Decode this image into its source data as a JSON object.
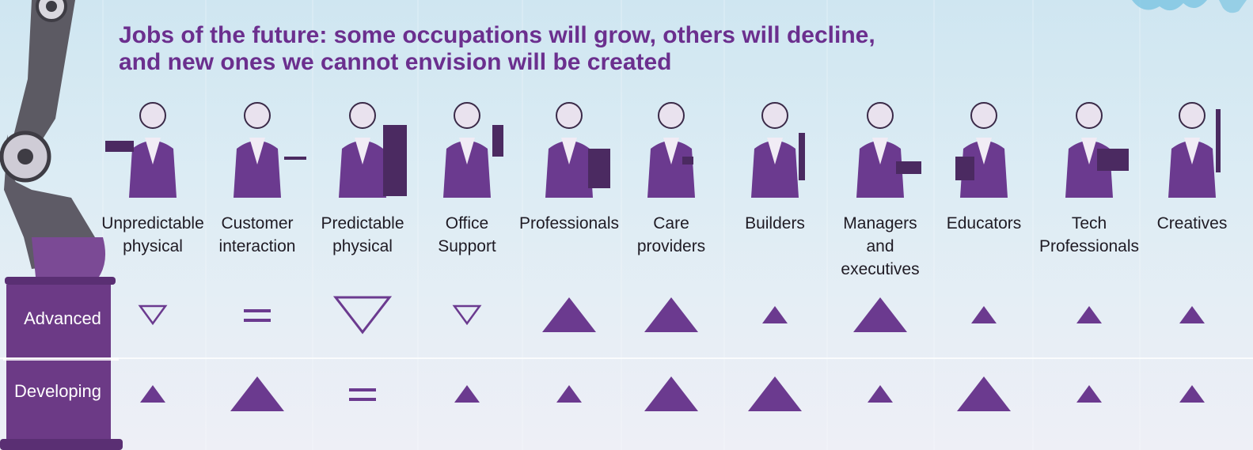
{
  "title": {
    "line1": "Jobs of the future: some occupations will grow, others will decline,",
    "line2": "and new ones we cannot envision will be created"
  },
  "rows": {
    "advanced": "Advanced",
    "developing": "Developing"
  },
  "colors": {
    "accent": "#6b3a8f",
    "title": "#6b2f8e",
    "label": "#1f1b24"
  },
  "columns": [
    {
      "line1": "Unpredictable",
      "line2": "physical",
      "line3": "",
      "icon": "worker-chainsaw-icon",
      "advanced": {
        "dir": "down",
        "size": "small"
      },
      "developing": {
        "dir": "up",
        "size": "small"
      }
    },
    {
      "line1": "Customer",
      "line2": "interaction",
      "line3": "",
      "icon": "waiter-icon",
      "advanced": {
        "dir": "equal",
        "size": "small"
      },
      "developing": {
        "dir": "up",
        "size": "large"
      }
    },
    {
      "line1": "Predictable",
      "line2": "physical",
      "line3": "",
      "icon": "machinist-icon",
      "advanced": {
        "dir": "down",
        "size": "large"
      },
      "developing": {
        "dir": "equal",
        "size": "small"
      }
    },
    {
      "line1": "Office",
      "line2": "Support",
      "line3": "",
      "icon": "office-worker-icon",
      "advanced": {
        "dir": "down",
        "size": "small"
      },
      "developing": {
        "dir": "up",
        "size": "small"
      }
    },
    {
      "line1": "Professionals",
      "line2": "",
      "line3": "",
      "icon": "scientist-microscope-icon",
      "advanced": {
        "dir": "up",
        "size": "large"
      },
      "developing": {
        "dir": "up",
        "size": "small"
      }
    },
    {
      "line1": "Care",
      "line2": "providers",
      "line3": "",
      "icon": "nurse-icon",
      "advanced": {
        "dir": "up",
        "size": "large"
      },
      "developing": {
        "dir": "up",
        "size": "large"
      }
    },
    {
      "line1": "Builders",
      "line2": "",
      "line3": "",
      "icon": "welder-icon",
      "advanced": {
        "dir": "up",
        "size": "small"
      },
      "developing": {
        "dir": "up",
        "size": "large"
      }
    },
    {
      "line1": "Managers",
      "line2": "and",
      "line3": "executives",
      "icon": "manager-tablet-icon",
      "advanced": {
        "dir": "up",
        "size": "large"
      },
      "developing": {
        "dir": "up",
        "size": "small"
      }
    },
    {
      "line1": "Educators",
      "line2": "",
      "line3": "",
      "icon": "teacher-podium-icon",
      "advanced": {
        "dir": "up",
        "size": "small"
      },
      "developing": {
        "dir": "up",
        "size": "large"
      }
    },
    {
      "line1": "Tech",
      "line2": "Professionals",
      "line3": "",
      "icon": "tech-laptop-icon",
      "advanced": {
        "dir": "up",
        "size": "small"
      },
      "developing": {
        "dir": "up",
        "size": "small"
      }
    },
    {
      "line1": "Creatives",
      "line2": "",
      "line3": "",
      "icon": "violinist-icon",
      "advanced": {
        "dir": "up",
        "size": "small"
      },
      "developing": {
        "dir": "up",
        "size": "small"
      }
    }
  ]
}
